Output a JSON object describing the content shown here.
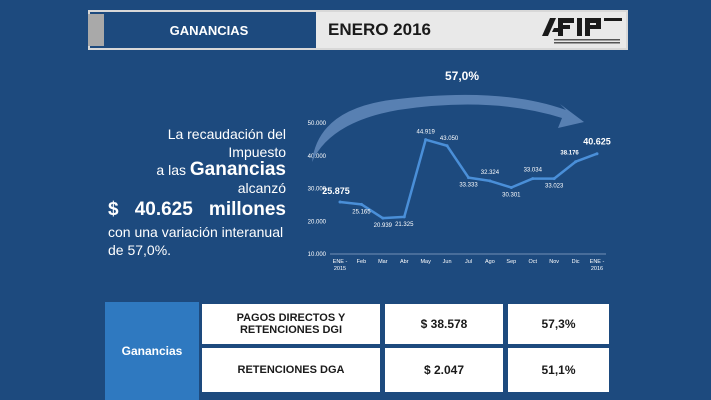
{
  "header": {
    "section": "GANANCIAS",
    "month": "ENERO 2016",
    "logo_text": "AFIP"
  },
  "description": {
    "line1": "La recaudación del Impuesto",
    "line2_pre": "a las",
    "line2_tax": "Ganancias",
    "line2_post": "alcanzó",
    "amount_currency": "$",
    "amount_value": "40.625",
    "amount_unit": "millones",
    "line4": "con una variación interanual",
    "line5": "de 57,0%."
  },
  "chart_data": {
    "type": "line",
    "variation_label": "57,0%",
    "x": [
      "ENE - 2015",
      "Feb",
      "Mar",
      "Abr",
      "May",
      "Jun",
      "Jul",
      "Ago",
      "Sep",
      "Oct",
      "Nov",
      "Dic",
      "ENE - 2016"
    ],
    "values": [
      25875,
      25165,
      20939,
      21325,
      44919,
      43050,
      33333,
      32324,
      30301,
      33034,
      33023,
      38176,
      40625
    ],
    "value_labels": [
      "25.875",
      "25.165",
      "20.939",
      "21.325",
      "44.919",
      "43.050",
      "33.333",
      "32.324",
      "30.301",
      "33.034",
      "33.023",
      "38.176",
      "40.625"
    ],
    "y_ticks": [
      "10.000",
      "20.000",
      "30.000",
      "40.000",
      "50.000"
    ],
    "ylim": [
      10000,
      50000
    ],
    "colors": {
      "line": "#4a8fd8",
      "arrow": "#5f86b8"
    }
  },
  "table": {
    "row_label": "Ganancias",
    "rows": [
      {
        "concept": "PAGOS DIRECTOS Y RETENCIONES DGI",
        "amount": "$ 38.578",
        "variation": "57,3%"
      },
      {
        "concept": "RETENCIONES DGA",
        "amount": "$ 2.047",
        "variation": "51,1%"
      }
    ]
  }
}
